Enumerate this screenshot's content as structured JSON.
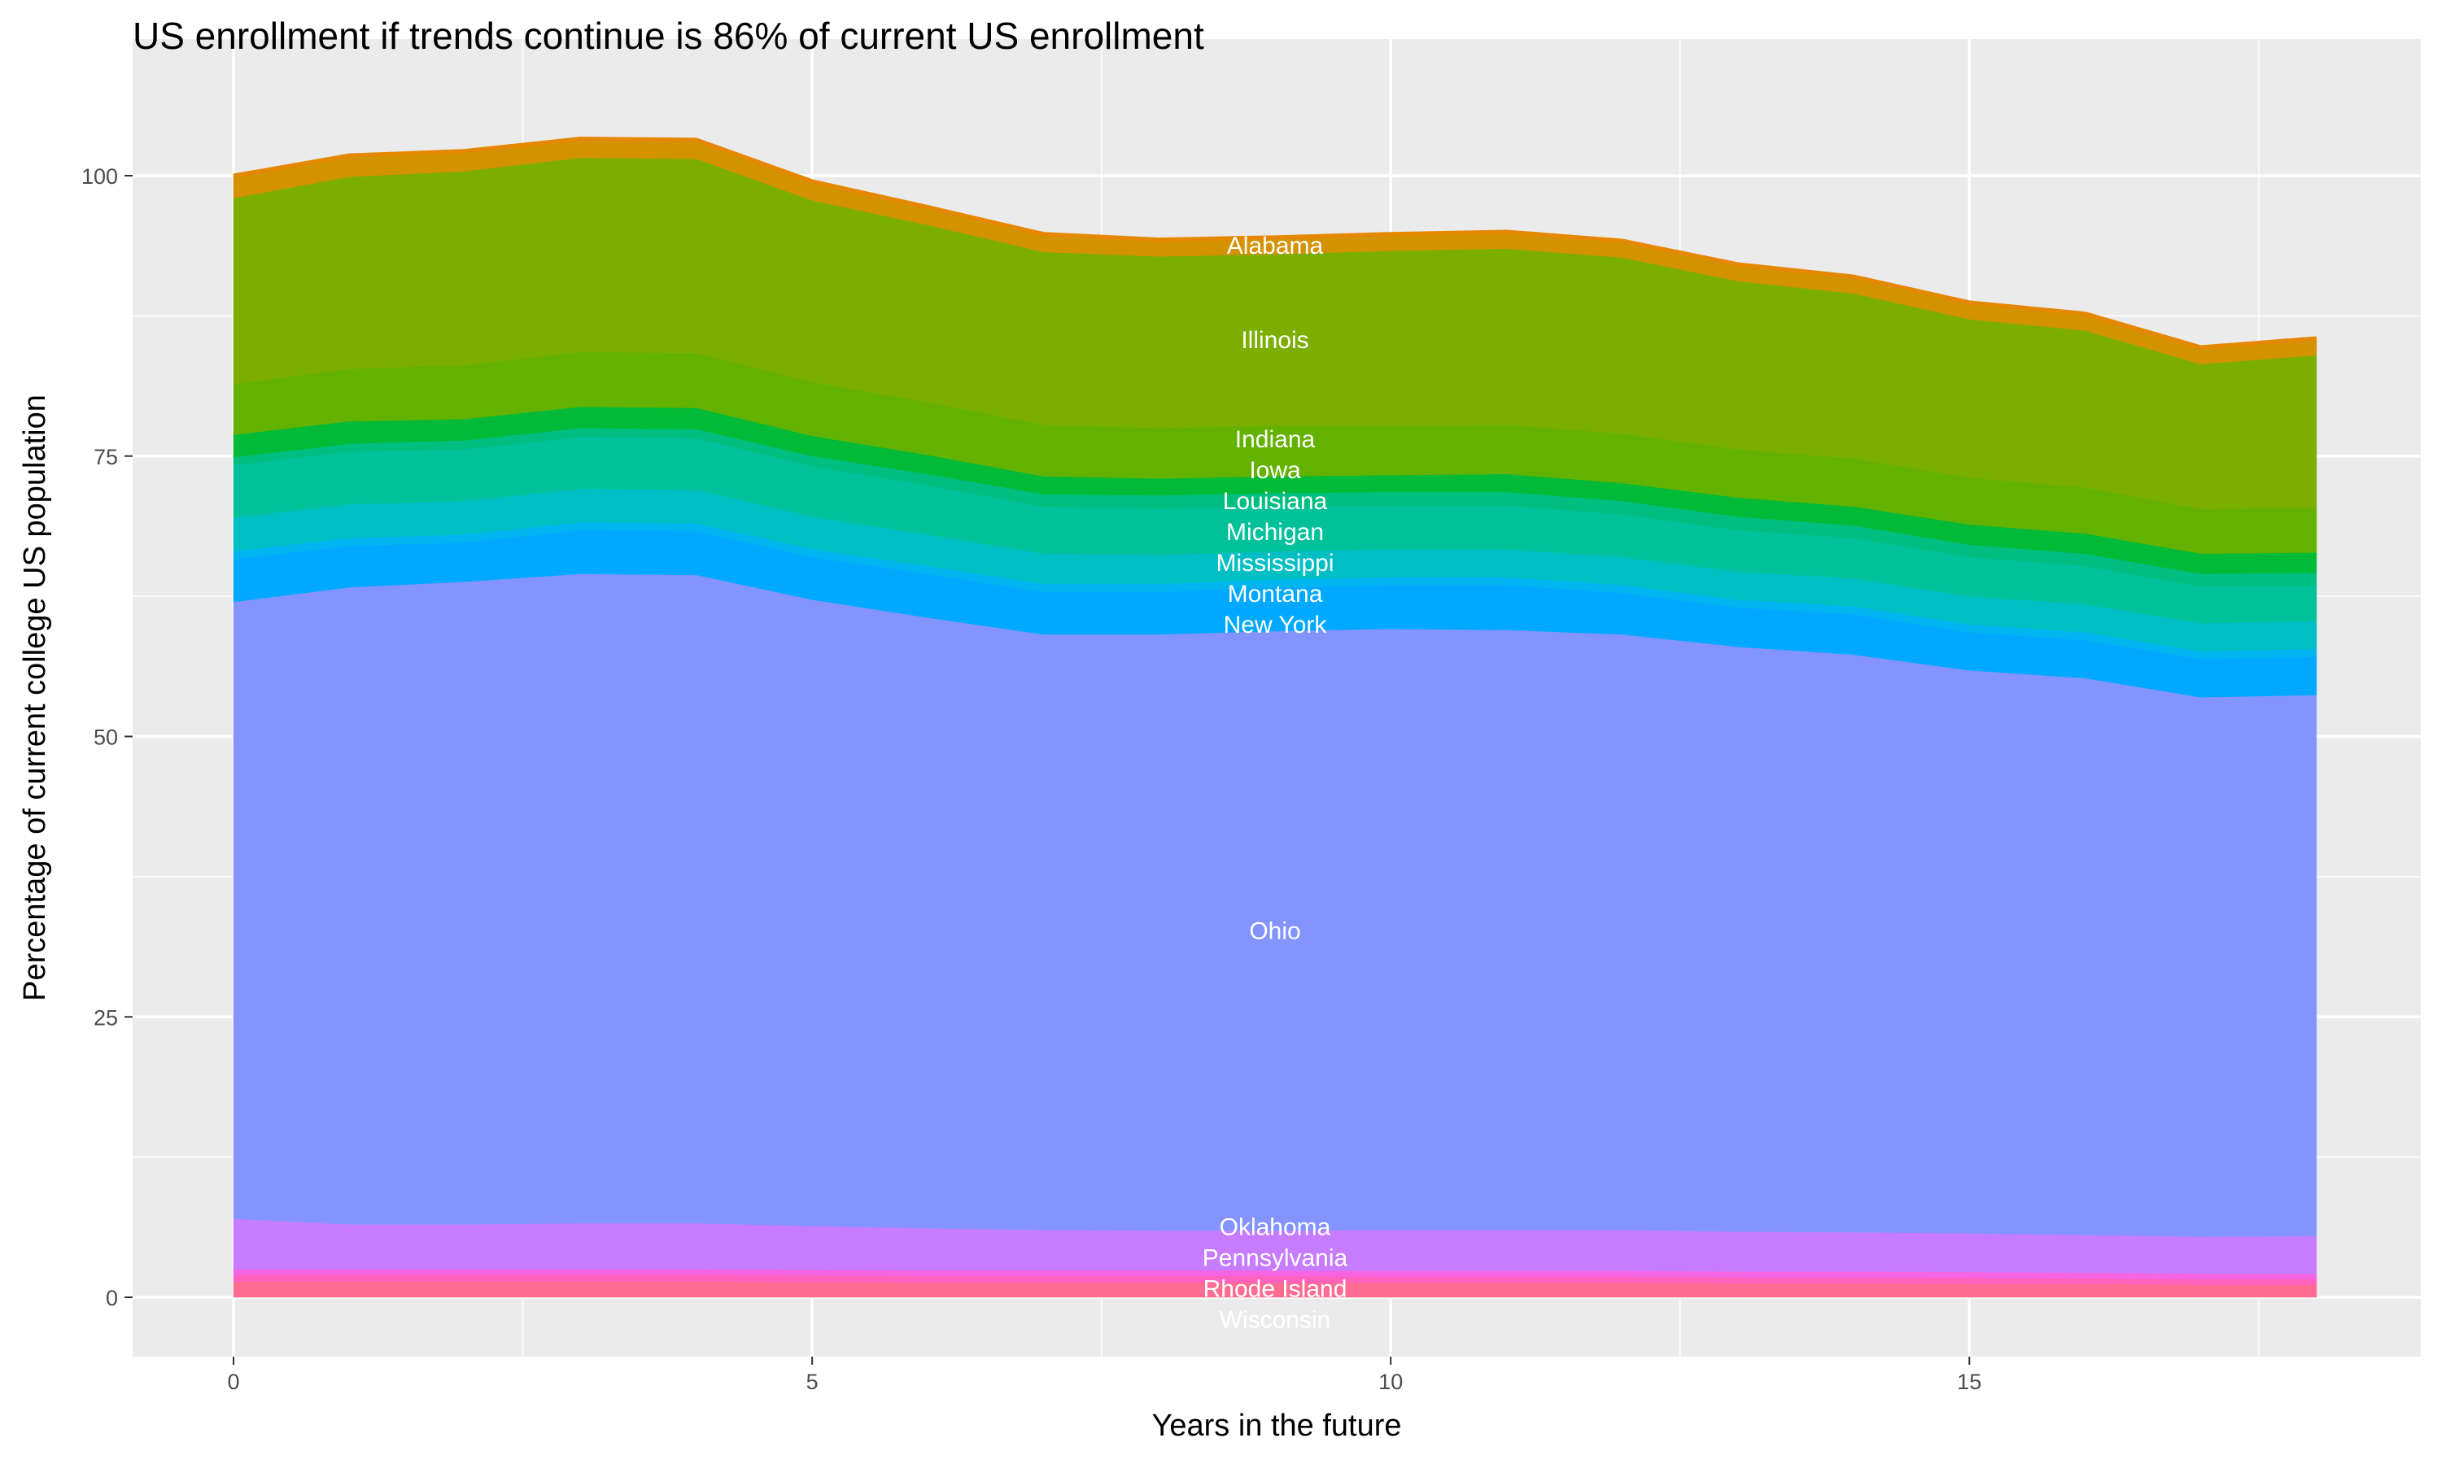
{
  "chart_data": {
    "type": "area",
    "stacked": true,
    "title": "US enrollment if trends continue is 86% of current US enrollment",
    "xlabel": "Years in the future",
    "ylabel": "Percentage of current college US population",
    "xlim": [
      0,
      18
    ],
    "ylim": [
      0,
      105
    ],
    "xticks": [
      0,
      5,
      10,
      15
    ],
    "yticks": [
      0,
      25,
      50,
      75,
      100
    ],
    "grid": true,
    "legend": "none",
    "x": [
      0,
      1,
      2,
      3,
      4,
      5,
      6,
      7,
      8,
      9,
      10,
      11,
      12,
      13,
      14,
      15,
      16,
      17,
      18
    ],
    "series": [
      {
        "name": "Wisconsin",
        "color": "#FF6C91",
        "values": [
          1.4,
          1.4,
          1.4,
          1.4,
          1.4,
          1.35,
          1.3,
          1.3,
          1.3,
          1.3,
          1.3,
          1.3,
          1.3,
          1.25,
          1.25,
          1.2,
          1.2,
          1.1,
          1.1
        ]
      },
      {
        "name": "Rhode Island",
        "color": "#FF62BC",
        "values": [
          0.6,
          0.6,
          0.6,
          0.6,
          0.6,
          0.6,
          0.6,
          0.6,
          0.6,
          0.6,
          0.55,
          0.55,
          0.55,
          0.55,
          0.55,
          0.55,
          0.5,
          0.5,
          0.5
        ]
      },
      {
        "name": "Pennsylvania",
        "color": "#F564E3",
        "values": [
          0.5,
          0.5,
          0.5,
          0.5,
          0.5,
          0.5,
          0.5,
          0.5,
          0.5,
          0.5,
          0.5,
          0.5,
          0.5,
          0.5,
          0.5,
          0.5,
          0.5,
          0.5,
          0.5
        ]
      },
      {
        "name": "Oklahoma",
        "color": "#C77CFF",
        "values": [
          4.5,
          4.0,
          4.0,
          4.1,
          4.1,
          3.9,
          3.75,
          3.6,
          3.55,
          3.55,
          3.65,
          3.65,
          3.65,
          3.55,
          3.5,
          3.45,
          3.35,
          3.3,
          3.35
        ]
      },
      {
        "name": "Ohio",
        "color": "#8494FF",
        "values": [
          55,
          56.8,
          57.3,
          57.9,
          57.8,
          55.85,
          54.45,
          53.1,
          53.15,
          53.45,
          53.6,
          53.5,
          53.1,
          52.15,
          51.5,
          50.2,
          49.65,
          48.1,
          48.25
        ]
      },
      {
        "name": "New York",
        "color": "#00A9FF",
        "values": [
          3.8,
          3.7,
          3.5,
          3.9,
          3.9,
          3.8,
          3.9,
          3.8,
          3.8,
          3.9,
          3.9,
          4.0,
          3.7,
          3.5,
          3.6,
          3.4,
          3.4,
          3.4,
          3.4
        ]
      },
      {
        "name": "Montana",
        "color": "#00B4EF",
        "values": [
          0.7,
          0.7,
          0.7,
          0.7,
          0.7,
          0.7,
          0.7,
          0.7,
          0.7,
          0.7,
          0.7,
          0.7,
          0.7,
          0.7,
          0.7,
          0.7,
          0.7,
          0.7,
          0.7
        ]
      },
      {
        "name": "Mississippi",
        "color": "#00BFC4",
        "values": [
          3,
          3,
          3,
          3,
          3,
          2.9,
          2.8,
          2.7,
          2.6,
          2.5,
          2.5,
          2.5,
          2.5,
          2.5,
          2.5,
          2.5,
          2.5,
          2.5,
          2.5
        ]
      },
      {
        "name": "Michigan",
        "color": "#00C19A",
        "values": [
          4.7,
          4.7,
          4.6,
          4.6,
          4.6,
          4.5,
          4.4,
          4.2,
          4.1,
          4.0,
          3.9,
          3.9,
          3.8,
          3.7,
          3.6,
          3.5,
          3.4,
          3.3,
          3.2
        ]
      },
      {
        "name": "Louisiana",
        "color": "#00BE80",
        "values": [
          0.7,
          0.7,
          0.8,
          0.8,
          0.8,
          0.9,
          1.0,
          1.1,
          1.2,
          1.2,
          1.2,
          1.2,
          1.2,
          1.2,
          1.1,
          1.1,
          1.1,
          1.1,
          1.1
        ]
      },
      {
        "name": "Iowa",
        "color": "#00BA38",
        "values": [
          2,
          2,
          1.9,
          1.9,
          1.9,
          1.8,
          1.7,
          1.6,
          1.5,
          1.5,
          1.5,
          1.6,
          1.6,
          1.7,
          1.7,
          1.8,
          1.8,
          1.8,
          1.8
        ]
      },
      {
        "name": "Indiana",
        "color": "#64B200",
        "values": [
          4.5,
          4.7,
          4.8,
          4.9,
          4.9,
          4.8,
          4.7,
          4.6,
          4.5,
          4.5,
          4.4,
          4.4,
          4.4,
          4.3,
          4.3,
          4.2,
          4.1,
          4.0,
          4.0
        ]
      },
      {
        "name": "Illinois",
        "color": "#7CAE00",
        "values": [
          16.6,
          17.1,
          17.3,
          17.3,
          17.3,
          16.2,
          15.8,
          15.4,
          15.3,
          15.3,
          15.6,
          15.7,
          15.7,
          15.0,
          14.7,
          14.1,
          14.0,
          12.9,
          13.6
        ]
      },
      {
        "name": "Alabama",
        "color": "#D39200",
        "values": [
          2,
          1.9,
          1.8,
          1.7,
          1.7,
          1.7,
          1.6,
          1.6,
          1.5,
          1.5,
          1.5,
          1.5,
          1.5,
          1.5,
          1.5,
          1.5,
          1.5,
          1.5,
          1.5
        ]
      }
    ],
    "label_x": 9,
    "colors": {
      "panel_bg": "#EBEBEB",
      "grid": "#FFFFFF",
      "top_edge": "#E58700"
    }
  }
}
